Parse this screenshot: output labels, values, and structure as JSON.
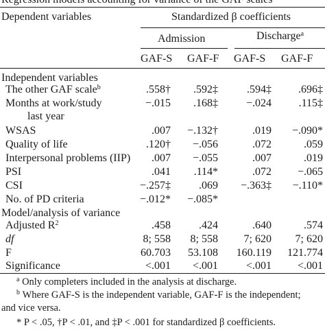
{
  "caption_cut": "Regression models accounting for variance of the GAF scales",
  "header": {
    "dependent_label": "Dependent variables",
    "group_label": "Standardized β coefficients",
    "admission": "Admission",
    "discharge": "Discharge",
    "discharge_mark": "a",
    "col1": "GAF-S",
    "col2": "GAF-F",
    "col3": "GAF-S",
    "col4": "GAF-F"
  },
  "section1": "Independent variables",
  "rows": [
    {
      "label": "The other GAF scale",
      "mark": "b",
      "v": [
        ".558†",
        ".592‡",
        ".594‡",
        ".696‡"
      ]
    },
    {
      "label": "Months at work/study",
      "label2": "last year",
      "v": [
        "−.015",
        ".168‡",
        "−.024",
        ".115‡"
      ]
    },
    {
      "label": "WSAS",
      "v": [
        ".007",
        "−.132†",
        ".019",
        "−.090*"
      ]
    },
    {
      "label": "Quality of life",
      "v": [
        ".120†",
        "−.056",
        ".072",
        ".059"
      ]
    },
    {
      "label": "Interpersonal problems (IIP)",
      "v": [
        ".007",
        "−.055",
        ".007",
        ".019"
      ]
    },
    {
      "label": "PSI",
      "v": [
        ".041",
        ".114*",
        ".072",
        "−.065"
      ]
    },
    {
      "label": "CSI",
      "v": [
        "−.257‡",
        ".069",
        "−.363‡",
        "−.110*"
      ]
    },
    {
      "label": "No. of PD criteria",
      "v": [
        "−.012*",
        "−.085*",
        "",
        ""
      ]
    }
  ],
  "section2": "Model/analysis of variance",
  "model_rows": [
    {
      "label": "Adjusted R",
      "sup": "2",
      "v": [
        ".458",
        ".424",
        ".640",
        ".574"
      ]
    },
    {
      "label": "df",
      "italic": true,
      "v": [
        "8; 558",
        "8; 558",
        "7; 620",
        "7; 620"
      ]
    },
    {
      "label": "F",
      "v": [
        "60.703",
        "53.108",
        "160.119",
        "121.774"
      ]
    },
    {
      "label": "Significance",
      "v": [
        "<.001",
        "<.001",
        "<.001",
        "<.001"
      ]
    }
  ],
  "footnotes": {
    "a_mark": "a",
    "a_text": "Only completers included in the analysis at discharge.",
    "b_mark": "b",
    "b_text": "Where GAF-S is the independent variable, GAF-F is the independent;",
    "b_text2": "and vice versa.",
    "sig_text": "* P < .05, †P < .01, and ‡P < .001 for standardized β coefficients."
  }
}
